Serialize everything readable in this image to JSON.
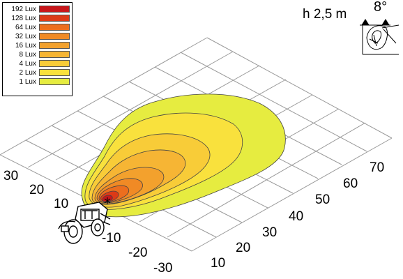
{
  "legend": {
    "entries": [
      {
        "label": "192 Lux",
        "color": "#c8171b"
      },
      {
        "label": "128 Lux",
        "color": "#dd3a17"
      },
      {
        "label": "64 Lux",
        "color": "#ec6e1e"
      },
      {
        "label": "32 Lux",
        "color": "#f08a25"
      },
      {
        "label": "16 Lux",
        "color": "#f3a12d"
      },
      {
        "label": "8 Lux",
        "color": "#f6b534"
      },
      {
        "label": "4 Lux",
        "color": "#f8cc38"
      },
      {
        "label": "2 Lux",
        "color": "#f9e13d"
      },
      {
        "label": "1 Lux",
        "color": "#e6ec40"
      }
    ]
  },
  "mounting": {
    "height_label": "h 2,5 m",
    "angle_label": "8°"
  },
  "axes": {
    "lateral_ticks": [
      "30",
      "20",
      "10",
      "-10",
      "-20",
      "-30"
    ],
    "distance_ticks": [
      "10",
      "20",
      "30",
      "40",
      "50",
      "60",
      "70"
    ]
  },
  "icons": {
    "vehicle": "tractor-icon",
    "light": "work-light-icon"
  }
}
